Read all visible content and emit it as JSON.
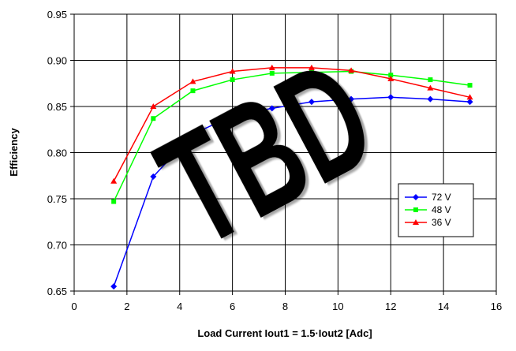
{
  "chart_data": {
    "type": "line",
    "x_label": "Load Current Iout1 = 1.5·Iout2 [Adc]",
    "y_label": "Efficiency",
    "annotation": "TBD",
    "x": [
      1.5,
      3,
      4.5,
      6,
      7.5,
      9,
      10.5,
      12,
      13.5,
      15
    ],
    "series": [
      {
        "name": "72 V",
        "color": "#0000ff",
        "marker": "diamond",
        "values": [
          0.655,
          0.774,
          0.82,
          0.84,
          0.848,
          0.855,
          0.858,
          0.86,
          0.858,
          0.855
        ]
      },
      {
        "name": "48 V",
        "color": "#00ff00",
        "marker": "square",
        "values": [
          0.747,
          0.837,
          0.867,
          0.879,
          0.886,
          0.887,
          0.888,
          0.884,
          0.879,
          0.873
        ]
      },
      {
        "name": "36 V",
        "color": "#ff0000",
        "marker": "triangle",
        "values": [
          0.769,
          0.85,
          0.877,
          0.888,
          0.892,
          0.892,
          0.889,
          0.88,
          0.87,
          0.86
        ]
      }
    ],
    "xlim": [
      0,
      16
    ],
    "xticks": [
      0,
      2,
      4,
      6,
      8,
      10,
      12,
      14,
      16
    ],
    "ylim": [
      0.65,
      0.95
    ],
    "yticks": [
      {
        "value": 0.65,
        "label": "0.65"
      },
      {
        "value": 0.7,
        "label": "0.70"
      },
      {
        "value": 0.75,
        "label": "0.75"
      },
      {
        "value": 0.8,
        "label": "0.80"
      },
      {
        "value": 0.85,
        "label": "0.85"
      },
      {
        "value": 0.9,
        "label": "0.90"
      },
      {
        "value": 0.95,
        "label": "0.95"
      }
    ],
    "grid": true,
    "legend": "right"
  }
}
